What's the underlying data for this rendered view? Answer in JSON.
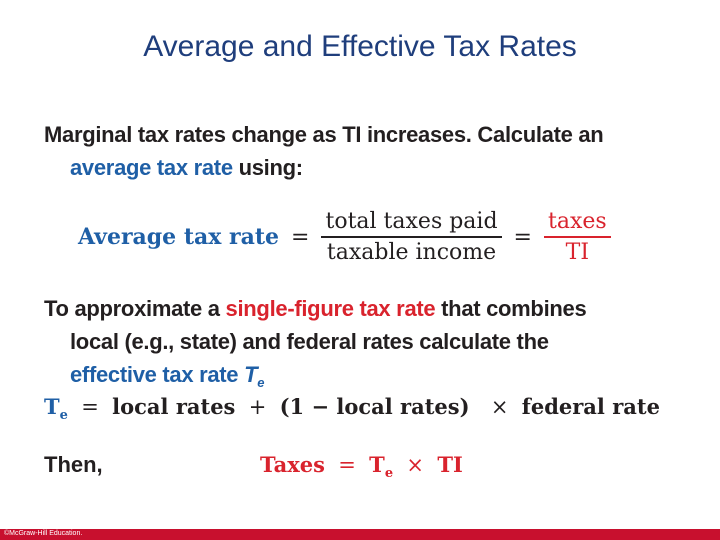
{
  "slide": {
    "title": "Average and Effective Tax Rates",
    "bullet1": {
      "line1": "Marginal tax rates change as TI increases. Calculate an",
      "highlight": "average tax rate",
      "rest": " using:"
    },
    "formula1": {
      "label": "Average tax rate",
      "equals": "=",
      "num1": "total taxes paid",
      "den1": "taxable income",
      "equals2": "=",
      "num2": "taxes",
      "den2": "TI"
    },
    "bullet2": {
      "prefix": "To approximate a ",
      "highlight1": "single-figure tax rate",
      "mid": " that combines",
      "line2": "local (e.g., state) and federal rates calculate the",
      "highlight2": "effective tax rate ",
      "te_symbol": "T",
      "te_sub": "e"
    },
    "formula2": {
      "te": "T",
      "te_sub": "e",
      "equals": "=",
      "term1": "local rates",
      "plus": "+",
      "paren": "(1 − local rates)",
      "times": "×",
      "term2": "federal rate"
    },
    "then_label": "Then,",
    "formula3": {
      "lhs": "Taxes",
      "equals": "=",
      "te": "T",
      "te_sub": "e",
      "times": "×",
      "rhs": "TI"
    },
    "footer": "©McGraw-Hill Education."
  }
}
